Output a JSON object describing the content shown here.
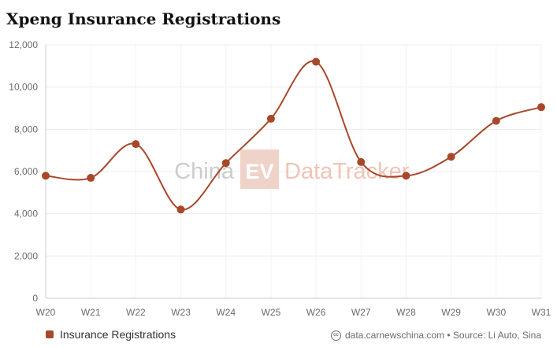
{
  "chart_data": {
    "type": "line",
    "title": "Xpeng Insurance Registrations",
    "categories": [
      "W20",
      "W21",
      "W22",
      "W23",
      "W24",
      "W25",
      "W26",
      "W27",
      "W28",
      "W29",
      "W30",
      "W31"
    ],
    "series": [
      {
        "name": "Insurance Registrations",
        "values": [
          5800,
          5700,
          7300,
          4200,
          6400,
          8500,
          11200,
          6450,
          5800,
          6700,
          8400,
          9050
        ]
      }
    ],
    "ylim": [
      0,
      12000
    ],
    "yticks": [
      0,
      2000,
      4000,
      6000,
      8000,
      10000,
      12000
    ],
    "ytick_labels": [
      "0",
      "2,000",
      "4,000",
      "6,000",
      "8,000",
      "10,000",
      "12,000"
    ],
    "grid": true,
    "legend": "bottom-left",
    "color": "#a8472a"
  },
  "watermark": {
    "left": "China",
    "badge": "EV",
    "right": "DataTracker"
  },
  "credits": {
    "icon": "cc-icon",
    "text": "data.carnewschina.com • Source: Li Auto, Sina"
  }
}
